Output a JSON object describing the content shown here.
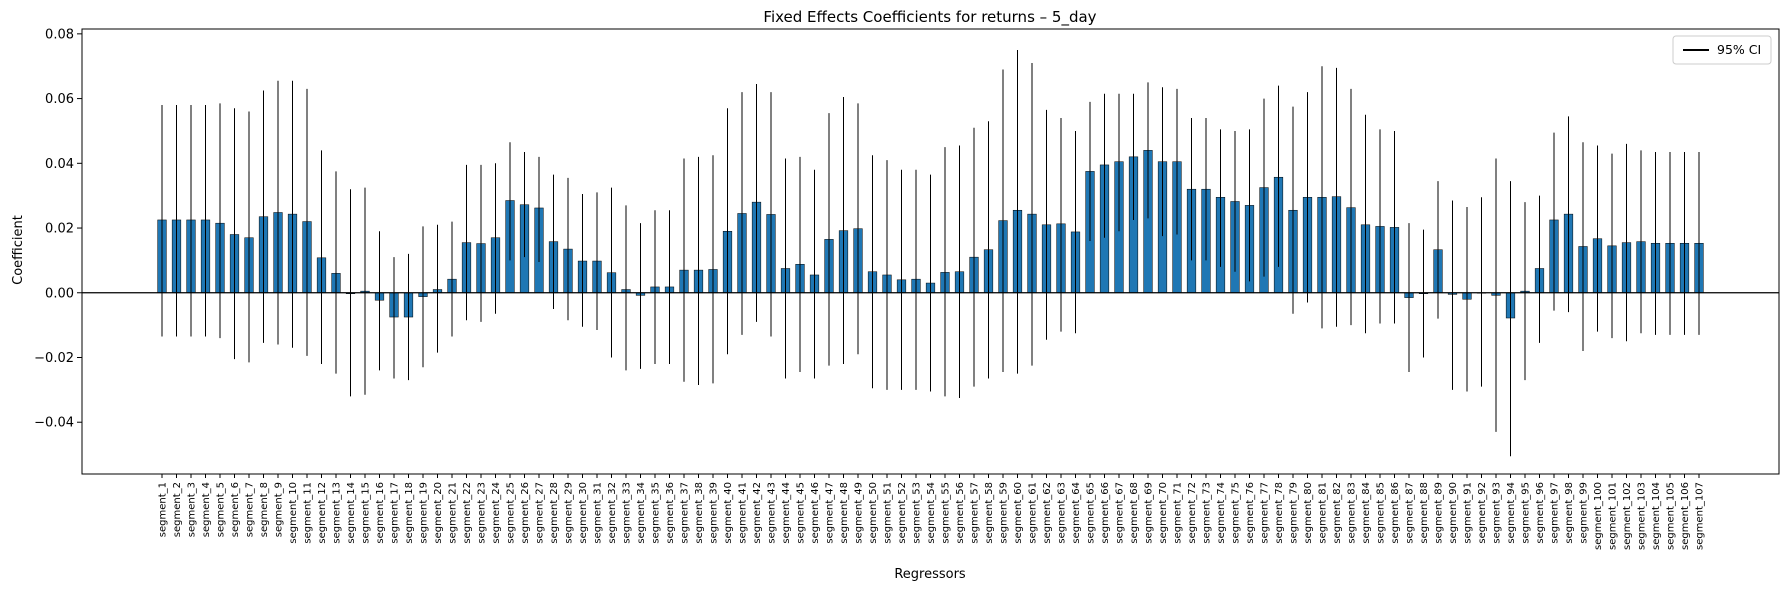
{
  "chart_data": {
    "type": "bar",
    "title": "Fixed Effects Coefficients for returns – 5_day",
    "xlabel": "Regressors",
    "ylabel": "Coefficient",
    "ylim": [
      -0.056,
      0.0815
    ],
    "yticks": [
      -0.04,
      -0.02,
      0.0,
      0.02,
      0.04,
      0.06,
      0.08
    ],
    "ytick_labels": [
      "−0.04",
      "−0.02",
      "0.00",
      "0.02",
      "0.04",
      "0.06",
      "0.08"
    ],
    "legend": {
      "label": "95% CI",
      "location": "upper right"
    },
    "grid": false,
    "zero_line": true,
    "colors": {
      "bar": "#1f77b4",
      "bar_edge": "#000000",
      "ci": "#000000",
      "zero_line": "#000000"
    },
    "categories": [
      "segment_1",
      "segment_2",
      "segment_3",
      "segment_4",
      "segment_5",
      "segment_6",
      "segment_7",
      "segment_8",
      "segment_9",
      "segment_10",
      "segment_11",
      "segment_12",
      "segment_13",
      "segment_14",
      "segment_15",
      "segment_16",
      "segment_17",
      "segment_18",
      "segment_19",
      "segment_20",
      "segment_21",
      "segment_22",
      "segment_23",
      "segment_24",
      "segment_25",
      "segment_26",
      "segment_27",
      "segment_28",
      "segment_29",
      "segment_30",
      "segment_31",
      "segment_32",
      "segment_33",
      "segment_34",
      "segment_35",
      "segment_36",
      "segment_37",
      "segment_38",
      "segment_39",
      "segment_40",
      "segment_41",
      "segment_42",
      "segment_43",
      "segment_44",
      "segment_45",
      "segment_46",
      "segment_47",
      "segment_48",
      "segment_49",
      "segment_50",
      "segment_51",
      "segment_52",
      "segment_53",
      "segment_54",
      "segment_55",
      "segment_56",
      "segment_57",
      "segment_58",
      "segment_59",
      "segment_60",
      "segment_61",
      "segment_62",
      "segment_63",
      "segment_64",
      "segment_65",
      "segment_66",
      "segment_67",
      "segment_68",
      "segment_69",
      "segment_70",
      "segment_71",
      "segment_72",
      "segment_73",
      "segment_74",
      "segment_75",
      "segment_76",
      "segment_77",
      "segment_78",
      "segment_79",
      "segment_80",
      "segment_81",
      "segment_82",
      "segment_83",
      "segment_84",
      "segment_85",
      "segment_86",
      "segment_87",
      "segment_88",
      "segment_89",
      "segment_90",
      "segment_91",
      "segment_92",
      "segment_93",
      "segment_94",
      "segment_95",
      "segment_96",
      "segment_97",
      "segment_98",
      "segment_99",
      "segment_100",
      "segment_101",
      "segment_102",
      "segment_103",
      "segment_104",
      "segment_105",
      "segment_106",
      "segment_107"
    ],
    "values": [
      0.0225,
      0.0225,
      0.0225,
      0.0225,
      0.0215,
      0.018,
      0.017,
      0.0235,
      0.0248,
      0.0243,
      0.022,
      0.0108,
      0.006,
      -0.0003,
      0.0005,
      -0.0023,
      -0.0075,
      -0.0075,
      -0.0012,
      0.001,
      0.0042,
      0.0155,
      0.0152,
      0.017,
      0.0285,
      0.0272,
      0.0262,
      0.0158,
      0.0135,
      0.0098,
      0.0098,
      0.0062,
      0.001,
      -0.0008,
      0.0018,
      0.0018,
      0.007,
      0.007,
      0.0072,
      0.019,
      0.0245,
      0.028,
      0.0242,
      0.0075,
      0.0088,
      0.0055,
      0.0165,
      0.0192,
      0.0198,
      0.0065,
      0.0055,
      0.004,
      0.0042,
      0.003,
      0.0063,
      0.0065,
      0.011,
      0.0133,
      0.0223,
      0.0255,
      0.0243,
      0.021,
      0.0213,
      0.0188,
      0.0375,
      0.0395,
      0.0405,
      0.042,
      0.044,
      0.0405,
      0.0405,
      0.032,
      0.032,
      0.0295,
      0.0282,
      0.027,
      0.0325,
      0.0357,
      0.0255,
      0.0295,
      0.0295,
      0.0297,
      0.0263,
      0.021,
      0.0205,
      0.0202,
      -0.0015,
      -0.0003,
      0.0133,
      -0.0005,
      -0.002,
      0.0,
      -0.0008,
      -0.0078,
      0.0005,
      0.0075,
      0.0225,
      0.0243,
      0.0143,
      0.0167,
      0.0145,
      0.0155,
      0.0158,
      0.0153,
      0.0153,
      0.0153,
      0.0153
    ],
    "ci_lower": [
      -0.0135,
      -0.0135,
      -0.0135,
      -0.0135,
      -0.014,
      -0.0205,
      -0.0215,
      -0.0155,
      -0.016,
      -0.017,
      -0.0195,
      -0.022,
      -0.025,
      -0.032,
      -0.0315,
      -0.024,
      -0.0265,
      -0.027,
      -0.023,
      -0.0185,
      -0.0135,
      -0.0085,
      -0.009,
      -0.0065,
      0.01,
      0.011,
      0.0095,
      -0.005,
      -0.0085,
      -0.0105,
      -0.0115,
      -0.02,
      -0.024,
      -0.0235,
      -0.022,
      -0.022,
      -0.0275,
      -0.0285,
      -0.028,
      -0.019,
      -0.013,
      -0.009,
      -0.0135,
      -0.0265,
      -0.0245,
      -0.0265,
      -0.0225,
      -0.022,
      -0.019,
      -0.0295,
      -0.03,
      -0.03,
      -0.03,
      -0.0305,
      -0.032,
      -0.0325,
      -0.029,
      -0.0265,
      -0.0245,
      -0.025,
      -0.0225,
      -0.0145,
      -0.012,
      -0.0125,
      0.016,
      0.017,
      0.019,
      0.0225,
      0.023,
      0.0175,
      0.018,
      0.01,
      0.01,
      0.008,
      0.0065,
      0.0035,
      0.005,
      0.008,
      -0.0065,
      -0.003,
      -0.011,
      -0.0105,
      -0.01,
      -0.0125,
      -0.0095,
      -0.0095,
      -0.0245,
      -0.02,
      -0.008,
      -0.03,
      -0.0305,
      -0.029,
      -0.043,
      -0.0505,
      -0.027,
      -0.0155,
      -0.0055,
      -0.006,
      -0.018,
      -0.012,
      -0.014,
      -0.015,
      -0.0125,
      -0.013,
      -0.013,
      -0.013,
      -0.013
    ],
    "ci_upper": [
      0.058,
      0.058,
      0.058,
      0.058,
      0.0585,
      0.057,
      0.056,
      0.0625,
      0.0655,
      0.0655,
      0.063,
      0.044,
      0.0375,
      0.032,
      0.0325,
      0.019,
      0.011,
      0.012,
      0.0205,
      0.021,
      0.022,
      0.0395,
      0.0395,
      0.04,
      0.0465,
      0.0435,
      0.042,
      0.0365,
      0.0355,
      0.0305,
      0.031,
      0.0325,
      0.027,
      0.0215,
      0.0255,
      0.0255,
      0.0415,
      0.042,
      0.0425,
      0.057,
      0.062,
      0.0645,
      0.062,
      0.0415,
      0.042,
      0.038,
      0.0555,
      0.0605,
      0.0585,
      0.0425,
      0.041,
      0.038,
      0.038,
      0.0365,
      0.045,
      0.0455,
      0.051,
      0.053,
      0.069,
      0.075,
      0.071,
      0.0565,
      0.054,
      0.05,
      0.059,
      0.0615,
      0.0615,
      0.0615,
      0.065,
      0.0635,
      0.063,
      0.054,
      0.054,
      0.0505,
      0.05,
      0.0505,
      0.06,
      0.064,
      0.0575,
      0.062,
      0.07,
      0.0695,
      0.063,
      0.055,
      0.0505,
      0.05,
      0.0215,
      0.0195,
      0.0345,
      0.0285,
      0.0265,
      0.0295,
      0.0415,
      0.0345,
      0.028,
      0.03,
      0.0495,
      0.0545,
      0.0465,
      0.0455,
      0.043,
      0.046,
      0.044,
      0.0435,
      0.0435,
      0.0435,
      0.0435
    ]
  }
}
